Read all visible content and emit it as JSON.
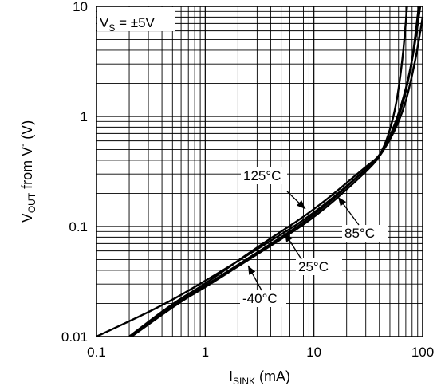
{
  "chart_data": {
    "type": "line",
    "title": "",
    "xlabel": {
      "main": "I",
      "sub": "SINK",
      "unit": " (mA)"
    },
    "ylabel": {
      "main": "V",
      "sub": "OUT",
      "mid": " from V",
      "sup": "-",
      "unit": " (V)"
    },
    "xscale": "log",
    "yscale": "log",
    "xlim": [
      0.1,
      100
    ],
    "ylim": [
      0.01,
      10
    ],
    "grid": true,
    "x_ticks": [
      "0.1",
      "1",
      "10",
      "100"
    ],
    "y_ticks": [
      "0.01",
      "0.1",
      "1",
      "10"
    ],
    "condition": {
      "main": "V",
      "sub": "S",
      "rest": " = ±5V"
    },
    "series": [
      {
        "name": "-40°C",
        "points": [
          [
            0.1,
            0.0098
          ],
          [
            0.4,
            0.019
          ],
          [
            1,
            0.032
          ],
          [
            3,
            0.062
          ],
          [
            10,
            0.13
          ],
          [
            30,
            0.33
          ],
          [
            42,
            0.45
          ],
          [
            55,
            1.0
          ],
          [
            65,
            3.0
          ],
          [
            72,
            10
          ]
        ]
      },
      {
        "name": "25°C",
        "points": [
          [
            0.2,
            0.01
          ],
          [
            0.5,
            0.019
          ],
          [
            1,
            0.029
          ],
          [
            3,
            0.058
          ],
          [
            10,
            0.124
          ],
          [
            30,
            0.33
          ],
          [
            42,
            0.45
          ],
          [
            60,
            1.0
          ],
          [
            80,
            3.0
          ],
          [
            95,
            10
          ]
        ]
      },
      {
        "name": "85°C",
        "points": [
          [
            0.21,
            0.01
          ],
          [
            0.6,
            0.021
          ],
          [
            1,
            0.028
          ],
          [
            3,
            0.056
          ],
          [
            10,
            0.118
          ],
          [
            30,
            0.31
          ],
          [
            42,
            0.45
          ],
          [
            65,
            1.0
          ],
          [
            85,
            3.0
          ],
          [
            100,
            8.0
          ]
        ]
      },
      {
        "name": "125°C",
        "points": [
          [
            0.2,
            0.01
          ],
          [
            0.5,
            0.02
          ],
          [
            1,
            0.03
          ],
          [
            3,
            0.065
          ],
          [
            10,
            0.14
          ],
          [
            30,
            0.35
          ],
          [
            42,
            0.45
          ],
          [
            62,
            1.0
          ],
          [
            80,
            3.0
          ],
          [
            92,
            10
          ]
        ]
      }
    ],
    "annotations": [
      {
        "text": "125°C"
      },
      {
        "text": "85°C"
      },
      {
        "text": "25°C"
      },
      {
        "text": "-40°C"
      }
    ]
  }
}
